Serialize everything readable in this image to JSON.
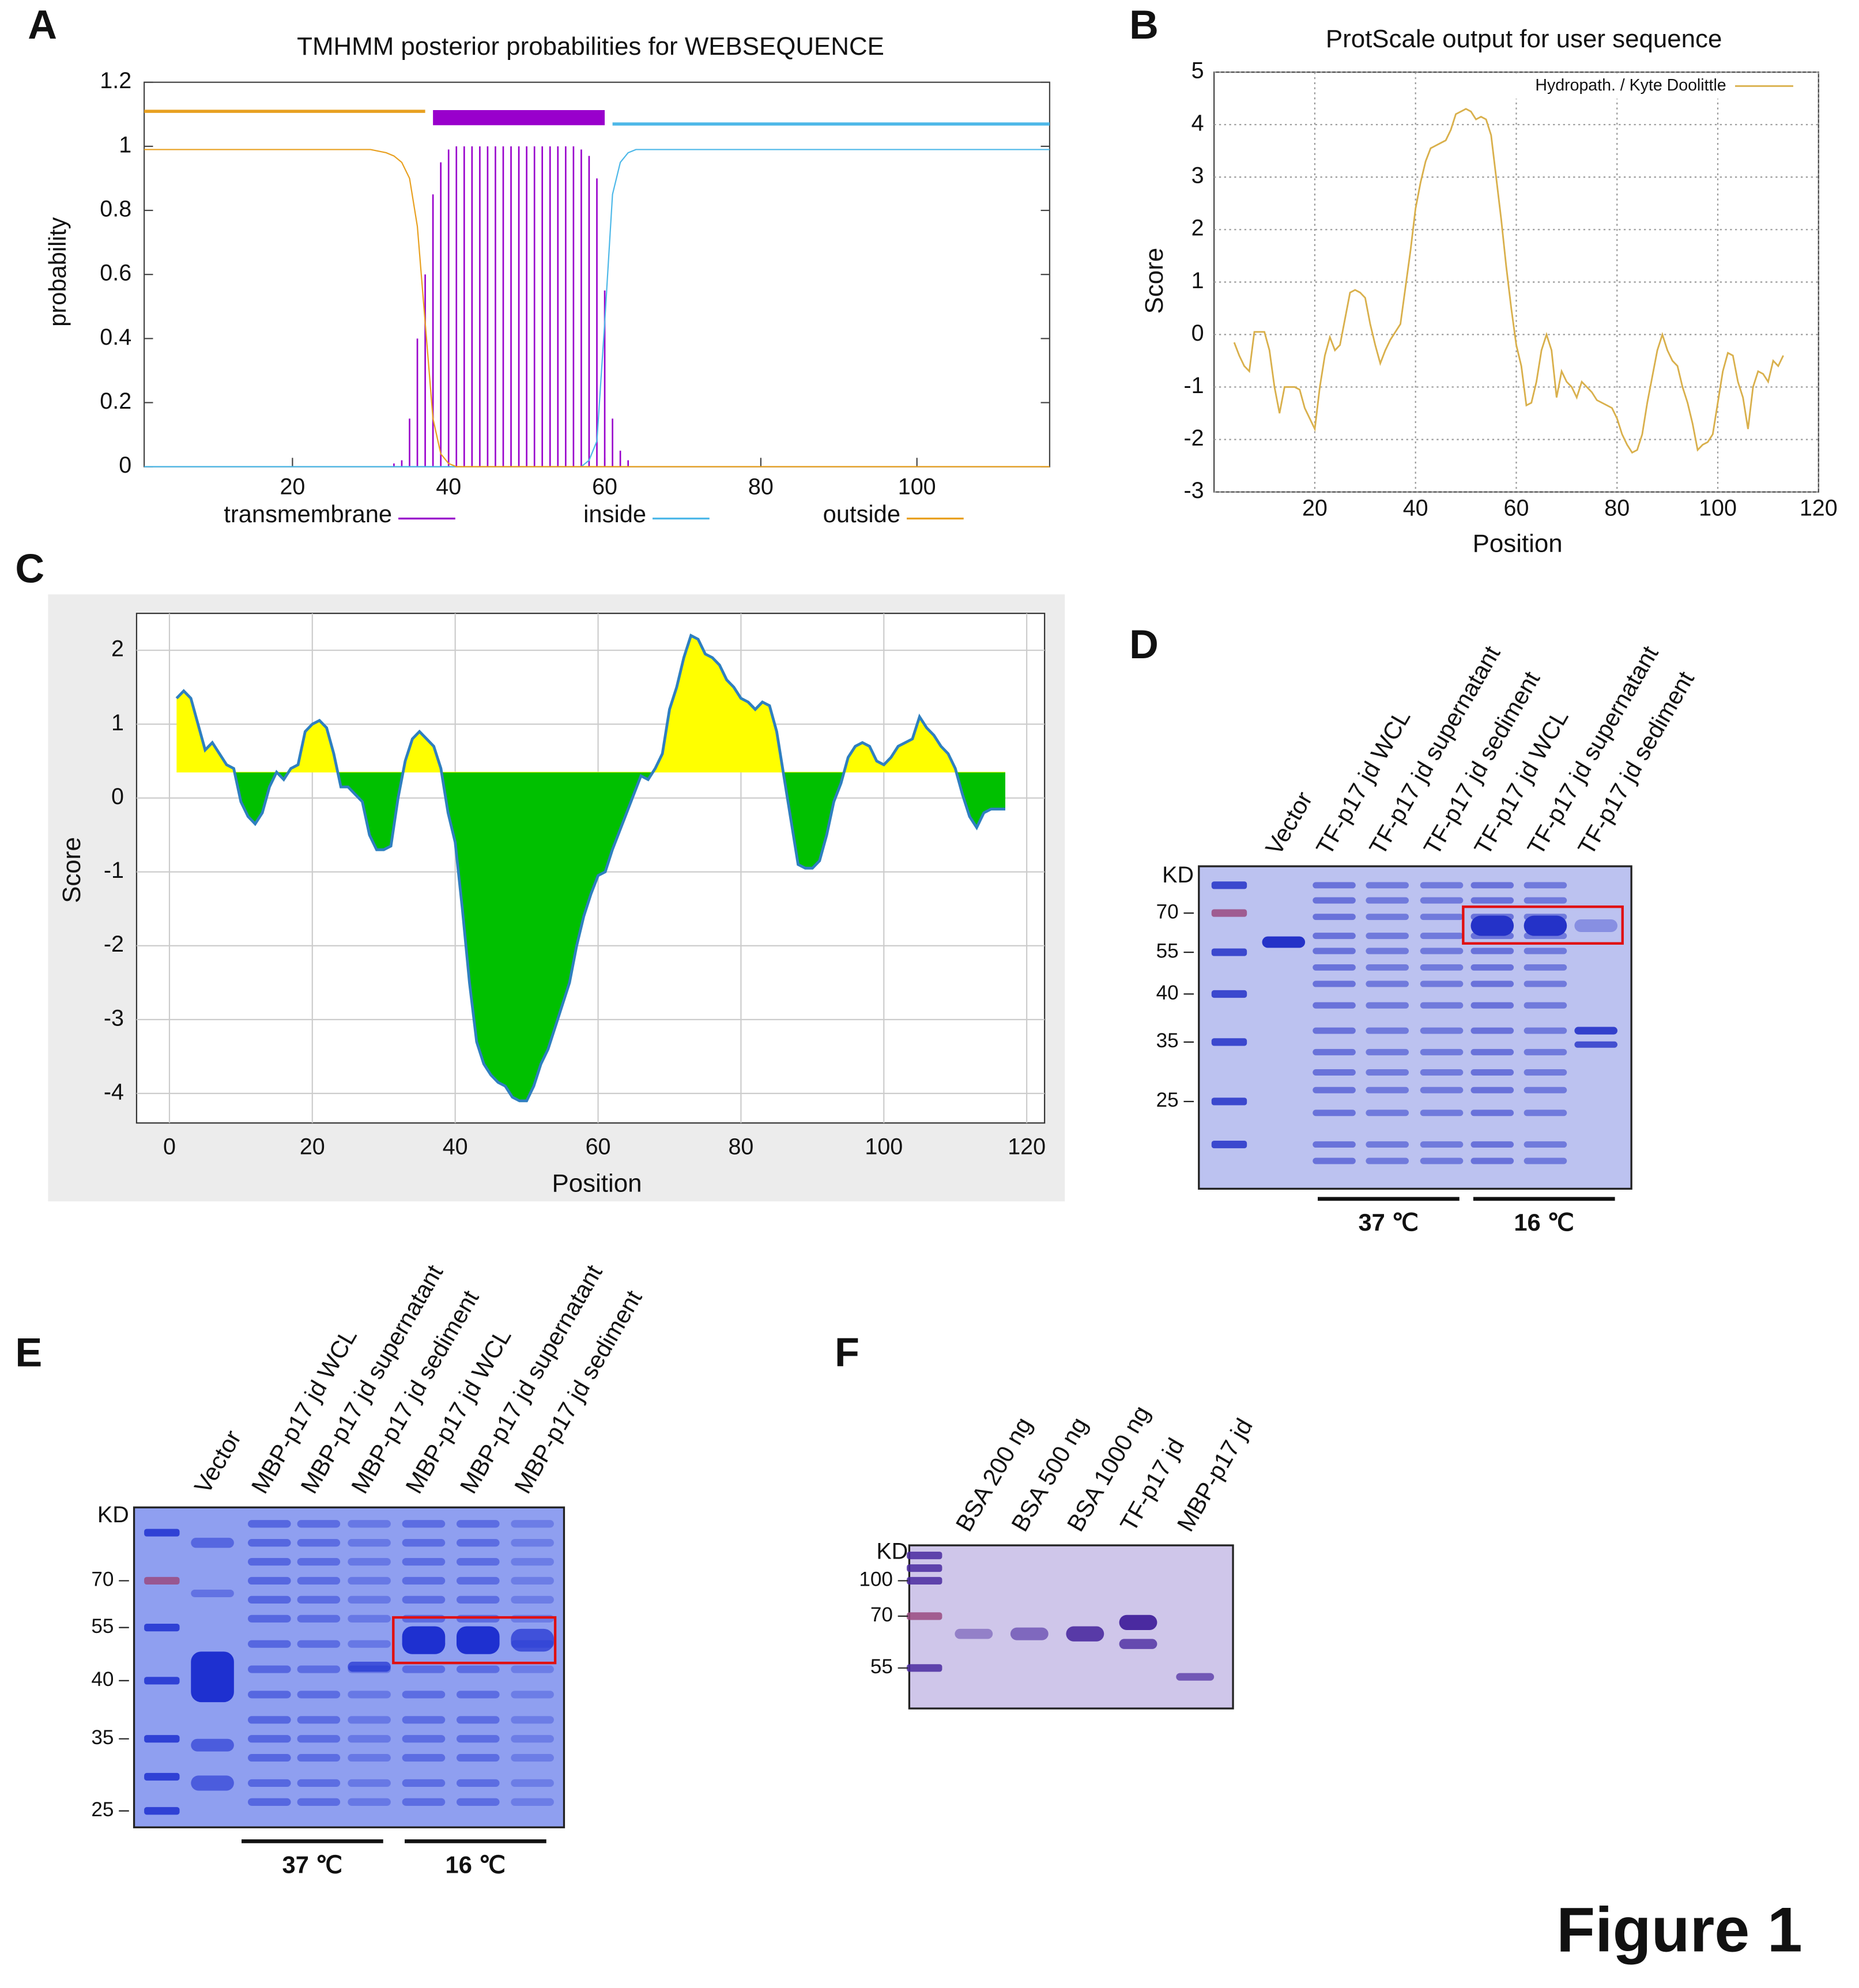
{
  "figure_label": "Figure 1",
  "chart_data": [
    {
      "type": "line",
      "panel": "A",
      "title": "TMHMM posterior probabilities for WEBSEQUENCE",
      "y_label": "probability",
      "xlim": [
        1,
        117
      ],
      "ylim": [
        0,
        1.2
      ],
      "xticks": [
        20,
        40,
        60,
        80,
        100
      ],
      "yticks": [
        0,
        0.2,
        0.4,
        0.6,
        0.8,
        1,
        1.2
      ],
      "x": [
        1,
        10,
        20,
        30,
        32,
        33,
        34,
        35,
        36,
        37,
        38,
        39,
        40,
        41,
        42,
        43,
        44,
        45,
        46,
        47,
        48,
        49,
        50,
        51,
        52,
        53,
        54,
        55,
        56,
        57,
        58,
        59,
        60,
        61,
        62,
        63,
        64,
        70,
        80,
        90,
        100,
        110,
        117
      ],
      "series": [
        {
          "name": "transmembrane",
          "color": "#9900cc",
          "mark": "impulse",
          "region": [
            38,
            60
          ],
          "values": [
            0,
            0,
            0,
            0,
            0,
            0.01,
            0.02,
            0.15,
            0.4,
            0.6,
            0.85,
            0.95,
            0.99,
            1,
            1,
            1,
            1,
            1,
            1,
            1,
            1,
            1,
            1,
            1,
            1,
            1,
            1,
            1,
            1,
            0.99,
            0.97,
            0.9,
            0.55,
            0.15,
            0.05,
            0.02,
            0,
            0,
            0,
            0,
            0,
            0,
            0
          ]
        },
        {
          "name": "inside",
          "color": "#4db8e8",
          "mark": "line",
          "region": [
            61,
            117
          ],
          "values": [
            0,
            0,
            0,
            0,
            0,
            0,
            0,
            0,
            0,
            0,
            0,
            0,
            0,
            0,
            0,
            0,
            0,
            0,
            0,
            0,
            0,
            0,
            0,
            0,
            0,
            0,
            0,
            0,
            0,
            0,
            0.02,
            0.08,
            0.45,
            0.85,
            0.95,
            0.98,
            0.99,
            0.99,
            0.99,
            0.99,
            0.99,
            0.99,
            0.99
          ]
        },
        {
          "name": "outside",
          "color": "#e8a020",
          "mark": "line",
          "region": [
            1,
            37
          ],
          "values": [
            0.99,
            0.99,
            0.99,
            0.99,
            0.98,
            0.97,
            0.95,
            0.9,
            0.75,
            0.45,
            0.15,
            0.04,
            0.01,
            0,
            0,
            0,
            0,
            0,
            0,
            0,
            0,
            0,
            0,
            0,
            0,
            0,
            0,
            0,
            0,
            0,
            0,
            0,
            0,
            0,
            0,
            0,
            0,
            0,
            0,
            0,
            0,
            0,
            0
          ]
        }
      ]
    },
    {
      "type": "line",
      "panel": "B",
      "title": "ProtScale output for user sequence",
      "x_label": "Position",
      "y_label": "Score",
      "xlim": [
        0,
        120
      ],
      "ylim": [
        -3,
        5
      ],
      "xticks": [
        20,
        40,
        60,
        80,
        100,
        120
      ],
      "yticks": [
        -3,
        -2,
        -1,
        0,
        1,
        2,
        3,
        4,
        5
      ],
      "grid": true,
      "legend": "top-right",
      "x": [
        4,
        5,
        6,
        7,
        8,
        9,
        10,
        11,
        12,
        13,
        14,
        15,
        16,
        17,
        18,
        19,
        20,
        21,
        22,
        23,
        24,
        25,
        26,
        27,
        28,
        29,
        30,
        31,
        32,
        33,
        34,
        35,
        36,
        37,
        38,
        39,
        40,
        41,
        42,
        43,
        44,
        45,
        46,
        47,
        48,
        49,
        50,
        51,
        52,
        53,
        54,
        55,
        56,
        57,
        58,
        59,
        60,
        61,
        62,
        63,
        64,
        65,
        66,
        67,
        68,
        69,
        70,
        71,
        72,
        73,
        74,
        75,
        76,
        77,
        78,
        79,
        80,
        81,
        82,
        83,
        84,
        85,
        86,
        87,
        88,
        89,
        90,
        91,
        92,
        93,
        94,
        95,
        96,
        97,
        98,
        99,
        100,
        101,
        102,
        103,
        104,
        105,
        106,
        107,
        108,
        109,
        110,
        111,
        112,
        113
      ],
      "series": [
        {
          "name": "Hydropath. / Kyte Doolittle",
          "color": "#d9b04c",
          "values": [
            -0.15,
            -0.4,
            -0.6,
            -0.7,
            0.05,
            0.05,
            0.05,
            -0.3,
            -1.0,
            -1.5,
            -1.0,
            -1.0,
            -1.0,
            -1.05,
            -1.4,
            -1.6,
            -1.8,
            -1.0,
            -0.4,
            -0.05,
            -0.3,
            -0.2,
            0.3,
            0.8,
            0.85,
            0.8,
            0.7,
            0.2,
            -0.2,
            -0.55,
            -0.3,
            -0.1,
            0.05,
            0.2,
            0.9,
            1.6,
            2.4,
            2.9,
            3.3,
            3.55,
            3.6,
            3.65,
            3.7,
            3.9,
            4.2,
            4.25,
            4.3,
            4.25,
            4.1,
            4.15,
            4.1,
            3.8,
            3.0,
            2.2,
            1.3,
            0.5,
            -0.2,
            -0.6,
            -1.35,
            -1.3,
            -0.9,
            -0.3,
            0,
            -0.3,
            -1.2,
            -0.7,
            -0.9,
            -1.0,
            -1.2,
            -0.9,
            -1.0,
            -1.1,
            -1.25,
            -1.3,
            -1.35,
            -1.4,
            -1.6,
            -1.9,
            -2.1,
            -2.25,
            -2.2,
            -1.9,
            -1.3,
            -0.8,
            -0.3,
            0,
            -0.3,
            -0.5,
            -0.6,
            -1.0,
            -1.3,
            -1.7,
            -2.2,
            -2.1,
            -2.05,
            -1.9,
            -1.3,
            -0.7,
            -0.35,
            -0.4,
            -0.9,
            -1.2,
            -1.8,
            -1.0,
            -0.7,
            -0.75,
            -0.9,
            -0.5,
            -0.6,
            -0.4
          ]
        }
      ]
    },
    {
      "type": "area",
      "panel": "C",
      "x_label": "Position",
      "y_label": "Score",
      "xlim": [
        -4.6,
        122.5
      ],
      "ylim": [
        -4.4,
        2.5
      ],
      "xticks": [
        0,
        20,
        40,
        60,
        80,
        100,
        120
      ],
      "yticks": [
        -4,
        -3,
        -2,
        -1,
        0,
        1,
        2
      ],
      "grid": true,
      "threshold": 0.35,
      "color": "#2f7fc0",
      "above_color": "#ffff00",
      "below_color": "#00c000",
      "x": [
        1,
        2,
        3,
        4,
        5,
        6,
        7,
        8,
        9,
        10,
        11,
        12,
        13,
        14,
        15,
        16,
        17,
        18,
        19,
        20,
        21,
        22,
        23,
        24,
        25,
        26,
        27,
        28,
        29,
        30,
        31,
        32,
        33,
        34,
        35,
        36,
        37,
        38,
        39,
        40,
        41,
        42,
        43,
        44,
        45,
        46,
        47,
        48,
        49,
        50,
        51,
        52,
        53,
        54,
        55,
        56,
        57,
        58,
        59,
        60,
        61,
        62,
        63,
        64,
        65,
        66,
        67,
        68,
        69,
        70,
        71,
        72,
        73,
        74,
        75,
        76,
        77,
        78,
        79,
        80,
        81,
        82,
        83,
        84,
        85,
        86,
        87,
        88,
        89,
        90,
        91,
        92,
        93,
        94,
        95,
        96,
        97,
        98,
        99,
        100,
        101,
        102,
        103,
        104,
        105,
        106,
        107,
        108,
        109,
        110,
        111,
        112,
        113,
        114,
        115,
        116,
        117
      ],
      "values": [
        1.35,
        1.45,
        1.35,
        1.0,
        0.65,
        0.75,
        0.6,
        0.45,
        0.4,
        -0.05,
        -0.25,
        -0.35,
        -0.2,
        0.15,
        0.35,
        0.25,
        0.4,
        0.45,
        0.9,
        1.0,
        1.05,
        0.95,
        0.6,
        0.15,
        0.15,
        0.05,
        -0.05,
        -0.5,
        -0.7,
        -0.7,
        -0.65,
        0,
        0.5,
        0.8,
        0.9,
        0.8,
        0.7,
        0.4,
        -0.2,
        -0.6,
        -1.5,
        -2.5,
        -3.3,
        -3.6,
        -3.75,
        -3.85,
        -3.9,
        -4.05,
        -4.1,
        -4.1,
        -3.9,
        -3.6,
        -3.4,
        -3.1,
        -2.8,
        -2.5,
        -2.0,
        -1.6,
        -1.3,
        -1.05,
        -1.0,
        -0.7,
        -0.45,
        -0.2,
        0.05,
        0.3,
        0.25,
        0.4,
        0.6,
        1.2,
        1.5,
        1.9,
        2.2,
        2.15,
        1.95,
        1.9,
        1.8,
        1.6,
        1.5,
        1.35,
        1.3,
        1.2,
        1.3,
        1.25,
        0.9,
        0.3,
        -0.3,
        -0.9,
        -0.95,
        -0.95,
        -0.85,
        -0.5,
        -0.05,
        0.2,
        0.55,
        0.7,
        0.75,
        0.7,
        0.5,
        0.45,
        0.55,
        0.7,
        0.75,
        0.8,
        1.1,
        0.95,
        0.85,
        0.7,
        0.6,
        0.4,
        0.05,
        -0.25,
        -0.4,
        -0.2,
        -0.15,
        -0.15,
        -0.15
      ]
    }
  ],
  "gels": [
    {
      "panel": "D",
      "unit": "KD",
      "markers": [
        "70",
        "55",
        "40",
        "35",
        "25"
      ],
      "lanes": [
        "Vector",
        "TF-p17 jd WCL",
        "TF-p17 jd supernatant",
        "TF-p17 jd sediment",
        "TF-p17 jd WCL",
        "TF-p17 jd supernatant",
        "TF-p17 jd sediment"
      ],
      "groups": [
        "37 ℃",
        "16 ℃"
      ]
    },
    {
      "panel": "E",
      "unit": "KD",
      "markers": [
        "70",
        "55",
        "40",
        "35",
        "25"
      ],
      "lanes": [
        "Vector",
        "MBP-p17 jd WCL",
        "MBP-p17 jd supernatant",
        "MBP-p17 jd sediment",
        "MBP-p17 jd WCL",
        "MBP-p17 jd supernatant",
        "MBP-p17 jd sediment"
      ],
      "groups": [
        "37 ℃",
        "16 ℃"
      ]
    },
    {
      "panel": "F",
      "unit": "KD",
      "markers": [
        "100",
        "70",
        "55"
      ],
      "lanes": [
        "BSA 200 ng",
        "BSA 500 ng",
        "BSA 1000 ng",
        "TF-p17 jd",
        "MBP-p17 jd"
      ]
    }
  ]
}
